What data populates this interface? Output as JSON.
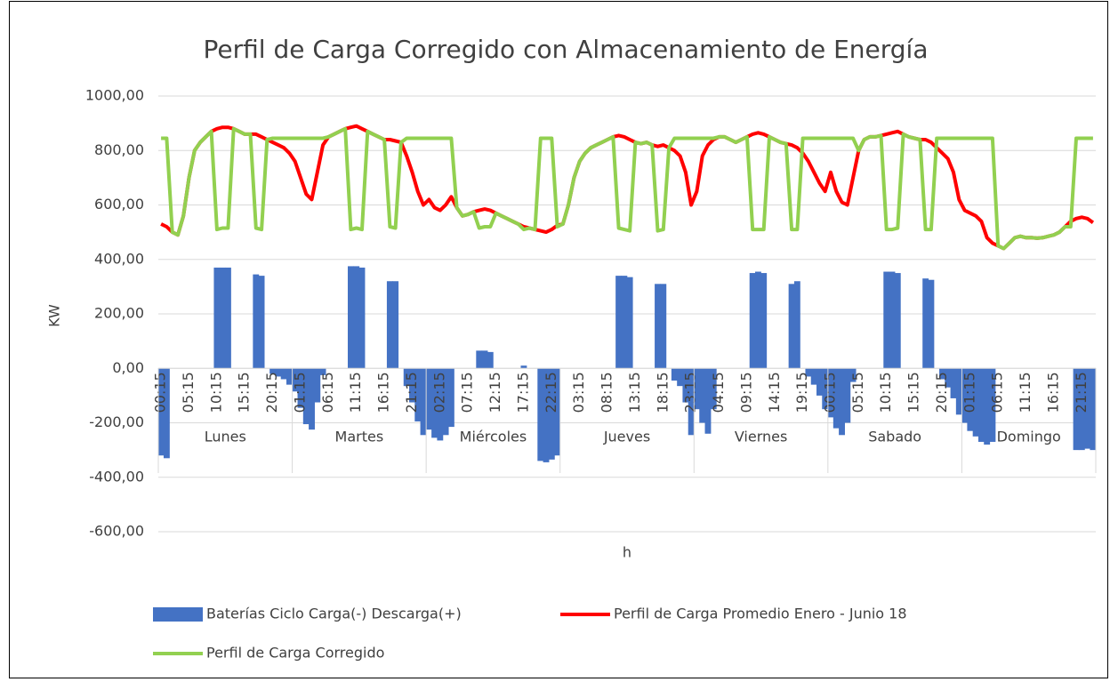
{
  "chart_data": {
    "type": "combo",
    "title": "Perfil de Carga Corregido con Almacenamiento de Energía",
    "y_label": "KW",
    "x_label": "h",
    "groups": [
      "Lunes",
      "Martes",
      "Miércoles",
      "Jueves",
      "Viernes",
      "Sabado",
      "Domingo"
    ],
    "categories": [
      "00:15",
      null,
      null,
      null,
      null,
      "05:15",
      null,
      null,
      null,
      null,
      "10:15",
      null,
      null,
      null,
      null,
      "15:15",
      null,
      null,
      null,
      null,
      "20:15",
      null,
      null,
      null,
      null,
      "01:15",
      null,
      null,
      null,
      null,
      "06:15",
      null,
      null,
      null,
      null,
      "11:15",
      null,
      null,
      null,
      null,
      "16:15",
      null,
      null,
      null,
      null,
      "21:15",
      null,
      null,
      null,
      null,
      "02:15",
      null,
      null,
      null,
      null,
      "07:15",
      null,
      null,
      null,
      null,
      "12:15",
      null,
      null,
      null,
      null,
      "17:15",
      null,
      null,
      null,
      null,
      "22:15",
      null,
      null,
      null,
      null,
      "03:15",
      null,
      null,
      null,
      null,
      "08:15",
      null,
      null,
      null,
      null,
      "13:15",
      null,
      null,
      null,
      null,
      "18:15",
      null,
      null,
      null,
      null,
      "23:15",
      null,
      null,
      null,
      null,
      "04:15",
      null,
      null,
      null,
      null,
      "09:15",
      null,
      null,
      null,
      null,
      "14:15",
      null,
      null,
      null,
      null,
      "19:15",
      null,
      null,
      null,
      null,
      "00:15",
      null,
      null,
      null,
      null,
      "05:15",
      null,
      null,
      null,
      null,
      "10:15",
      null,
      null,
      null,
      null,
      "15:15",
      null,
      null,
      null,
      null,
      "20:15",
      null,
      null,
      null,
      null,
      "01:15",
      null,
      null,
      null,
      null,
      "06:15",
      null,
      null,
      null,
      null,
      "11:15",
      null,
      null,
      null,
      null,
      "16:15",
      null,
      null,
      null,
      null,
      "21:15",
      null,
      null
    ],
    "series": [
      {
        "name": "Baterías Ciclo Carga(-) Descarga(+)",
        "type": "bar",
        "color": "#4472c4",
        "values": [
          -320,
          -330,
          0,
          0,
          0,
          0,
          0,
          0,
          0,
          0,
          370,
          370,
          370,
          0,
          0,
          0,
          0,
          345,
          340,
          0,
          -20,
          -30,
          -40,
          -60,
          -85,
          -145,
          -205,
          -225,
          -125,
          -25,
          0,
          0,
          0,
          0,
          375,
          375,
          370,
          0,
          0,
          0,
          0,
          320,
          320,
          0,
          -65,
          -125,
          -195,
          -245,
          -225,
          -255,
          -265,
          -245,
          -215,
          0,
          0,
          0,
          0,
          65,
          65,
          60,
          0,
          0,
          0,
          0,
          0,
          10,
          0,
          0,
          -340,
          -345,
          -335,
          -320,
          0,
          0,
          0,
          0,
          0,
          0,
          0,
          0,
          0,
          0,
          340,
          340,
          335,
          0,
          0,
          0,
          0,
          310,
          310,
          0,
          -45,
          -65,
          -125,
          -245,
          -150,
          -200,
          -240,
          -150,
          0,
          0,
          0,
          0,
          0,
          0,
          350,
          355,
          350,
          0,
          0,
          0,
          0,
          310,
          320,
          0,
          -30,
          -60,
          -100,
          -150,
          -180,
          -220,
          -245,
          -200,
          -50,
          0,
          0,
          0,
          0,
          0,
          355,
          355,
          350,
          0,
          0,
          0,
          0,
          330,
          325,
          0,
          -40,
          -70,
          -110,
          -170,
          -200,
          -230,
          -250,
          -270,
          -280,
          -270,
          0,
          0,
          0,
          0,
          0,
          0,
          0,
          0,
          0,
          0,
          0,
          0,
          0,
          0,
          -300,
          -300,
          -295,
          -300
        ]
      },
      {
        "name": "Perfil de Carga Promedio Enero - Junio 18",
        "type": "line",
        "color": "#ff0000",
        "values": [
          530,
          520,
          500,
          490,
          560,
          700,
          800,
          830,
          850,
          870,
          880,
          885,
          885,
          880,
          870,
          860,
          860,
          860,
          850,
          840,
          830,
          820,
          810,
          790,
          760,
          700,
          640,
          620,
          720,
          820,
          850,
          860,
          870,
          880,
          885,
          890,
          880,
          870,
          860,
          850,
          840,
          840,
          835,
          830,
          780,
          720,
          650,
          600,
          620,
          590,
          580,
          600,
          630,
          590,
          560,
          565,
          575,
          580,
          585,
          580,
          570,
          560,
          550,
          540,
          530,
          520,
          515,
          510,
          505,
          500,
          510,
          525,
          530,
          600,
          700,
          760,
          790,
          810,
          820,
          830,
          840,
          850,
          855,
          850,
          840,
          830,
          825,
          830,
          820,
          815,
          820,
          810,
          800,
          780,
          720,
          600,
          650,
          780,
          820,
          840,
          850,
          850,
          840,
          830,
          840,
          850,
          860,
          865,
          860,
          850,
          840,
          830,
          825,
          820,
          810,
          790,
          760,
          720,
          680,
          650,
          720,
          650,
          610,
          600,
          700,
          800,
          840,
          850,
          850,
          855,
          860,
          865,
          870,
          860,
          850,
          845,
          840,
          840,
          830,
          810,
          790,
          770,
          720,
          620,
          580,
          570,
          560,
          540,
          480,
          460,
          450,
          440,
          460,
          480,
          485,
          480,
          480,
          478,
          480,
          485,
          490,
          500,
          520,
          540,
          550,
          555,
          550,
          535
        ]
      },
      {
        "name": "Perfil de Carga Corregido",
        "type": "line",
        "color": "#92d050",
        "values": [
          845,
          845,
          500,
          490,
          560,
          700,
          800,
          830,
          850,
          870,
          510,
          515,
          515,
          880,
          870,
          860,
          860,
          515,
          510,
          840,
          845,
          845,
          845,
          845,
          845,
          845,
          845,
          845,
          845,
          845,
          850,
          860,
          870,
          880,
          510,
          515,
          510,
          870,
          860,
          850,
          840,
          520,
          515,
          830,
          845,
          845,
          845,
          845,
          845,
          845,
          845,
          845,
          845,
          590,
          560,
          565,
          575,
          515,
          520,
          520,
          570,
          560,
          550,
          540,
          530,
          510,
          515,
          510,
          845,
          845,
          845,
          520,
          530,
          600,
          700,
          760,
          790,
          810,
          820,
          830,
          840,
          850,
          515,
          510,
          505,
          830,
          825,
          830,
          820,
          505,
          510,
          810,
          845,
          845,
          845,
          845,
          845,
          845,
          845,
          845,
          850,
          850,
          840,
          830,
          840,
          850,
          510,
          510,
          510,
          850,
          840,
          830,
          825,
          510,
          510,
          845,
          845,
          845,
          845,
          845,
          845,
          845,
          845,
          845,
          845,
          800,
          840,
          850,
          850,
          855,
          510,
          510,
          515,
          860,
          850,
          845,
          840,
          510,
          510,
          845,
          845,
          845,
          845,
          845,
          845,
          845,
          845,
          845,
          845,
          845,
          450,
          440,
          460,
          480,
          485,
          480,
          480,
          478,
          480,
          485,
          490,
          500,
          520,
          520,
          845,
          845,
          845,
          845
        ]
      }
    ],
    "ylim": [
      -600,
      1000
    ],
    "yticks": [
      {
        "value": -600,
        "label": "-600,00"
      },
      {
        "value": -400,
        "label": "-400,00"
      },
      {
        "value": -200,
        "label": "-200,00"
      },
      {
        "value": 0,
        "label": "0,00"
      },
      {
        "value": 200,
        "label": "200,00"
      },
      {
        "value": 400,
        "label": "400,00"
      },
      {
        "value": 600,
        "label": "600,00"
      },
      {
        "value": 800,
        "label": "800,00"
      },
      {
        "value": 1000,
        "label": "1000,00"
      }
    ],
    "grid": true,
    "legend": "bottom"
  }
}
